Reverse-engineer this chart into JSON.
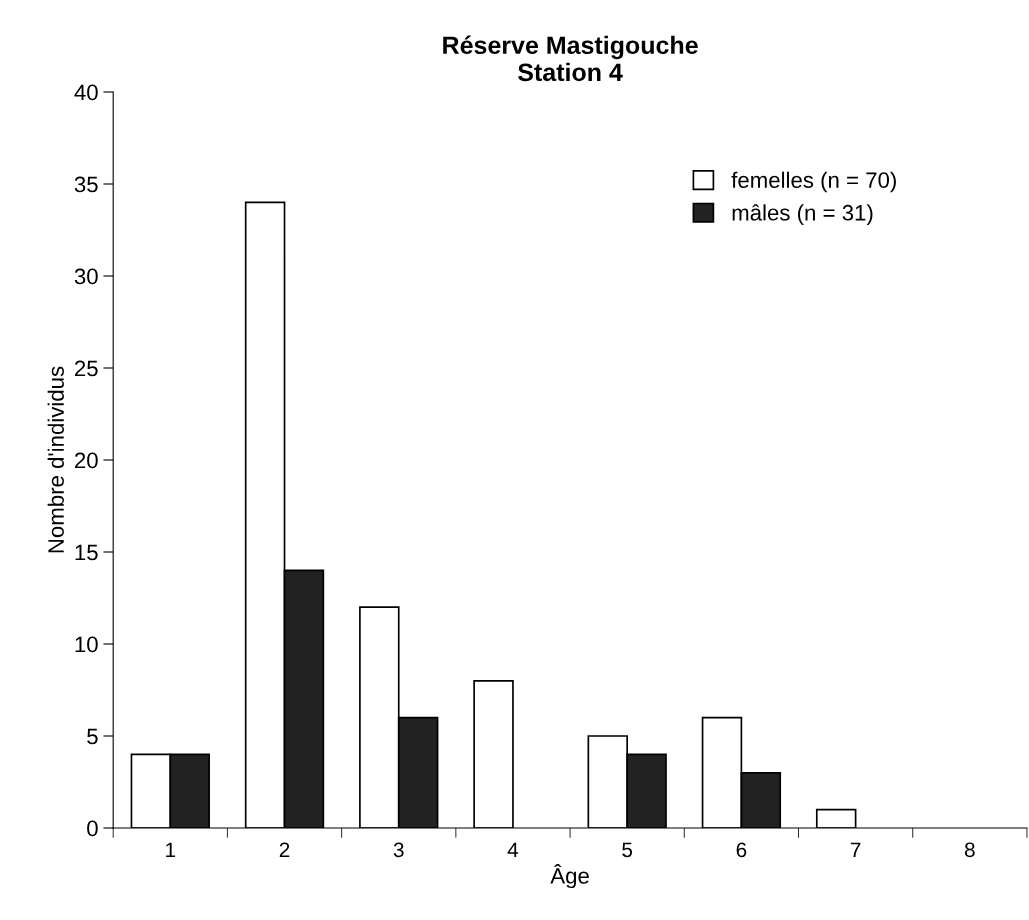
{
  "chart_data": {
    "type": "bar",
    "title": "Réserve Mastigouche\nStation 4",
    "xlabel": "Âge",
    "ylabel": "Nombre d'individus",
    "categories": [
      "1",
      "2",
      "3",
      "4",
      "5",
      "6",
      "7",
      "8"
    ],
    "series": [
      {
        "name": "femelles (n = 70)",
        "color": "#ffffff",
        "values": [
          4,
          34,
          12,
          8,
          5,
          6,
          1,
          0
        ]
      },
      {
        "name": "mâles (n = 31)",
        "color": "#222222",
        "values": [
          4,
          14,
          6,
          0,
          4,
          3,
          0,
          0
        ]
      }
    ],
    "ylim": [
      0,
      40
    ],
    "yticks": [
      0,
      5,
      10,
      15,
      20,
      25,
      30,
      35,
      40
    ],
    "grid": false,
    "legend": "top right"
  }
}
